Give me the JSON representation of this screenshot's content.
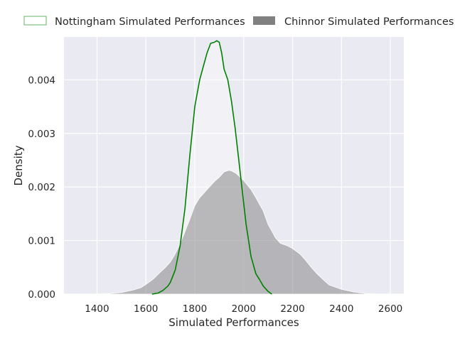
{
  "chart_data": {
    "type": "area",
    "title": "",
    "xlabel": "Simulated Performances",
    "ylabel": "Density",
    "xlim": [
      1265,
      2655
    ],
    "ylim": [
      0,
      0.0048
    ],
    "x_ticks": [
      "1400",
      "1600",
      "1800",
      "2000",
      "2200",
      "2400",
      "2600"
    ],
    "x_tick_values": [
      1400,
      1600,
      1800,
      2000,
      2200,
      2400,
      2600
    ],
    "y_ticks": [
      "0.000",
      "0.001",
      "0.002",
      "0.003",
      "0.004"
    ],
    "y_tick_values": [
      0,
      0.001,
      0.002,
      0.003,
      0.004
    ],
    "grid": true,
    "legend_position": "top",
    "background_color": "#eaeaf2",
    "series": [
      {
        "name": "Nottingham Simulated Performances",
        "style": "line-with-light-fill",
        "line_color": "#008000",
        "fill_color": "#ffffff",
        "x": [
          1625,
          1650,
          1670,
          1690,
          1700,
          1720,
          1740,
          1760,
          1780,
          1800,
          1820,
          1835,
          1850,
          1865,
          1880,
          1890,
          1900,
          1910,
          1920,
          1935,
          1950,
          1965,
          1980,
          1995,
          2010,
          2030,
          2050,
          2065,
          2080,
          2100,
          2115
        ],
        "y": [
          0.0,
          2e-05,
          7e-05,
          0.00015,
          0.00022,
          0.00045,
          0.0009,
          0.0016,
          0.0026,
          0.0035,
          0.004,
          0.00425,
          0.0045,
          0.00468,
          0.0047,
          0.00473,
          0.0047,
          0.0045,
          0.0042,
          0.004,
          0.0036,
          0.0031,
          0.0025,
          0.0019,
          0.0013,
          0.0007,
          0.00038,
          0.00027,
          0.00015,
          5e-05,
          0.0
        ]
      },
      {
        "name": "Chinnor Simulated Performances",
        "style": "filled-area",
        "line_color": "#ffffff",
        "fill_color": "#808080",
        "x": [
          1325,
          1400,
          1450,
          1500,
          1550,
          1580,
          1600,
          1630,
          1650,
          1680,
          1700,
          1720,
          1750,
          1780,
          1800,
          1820,
          1850,
          1880,
          1900,
          1920,
          1940,
          1950,
          1970,
          2000,
          2030,
          2050,
          2080,
          2100,
          2130,
          2150,
          2180,
          2200,
          2230,
          2250,
          2280,
          2300,
          2330,
          2350,
          2400,
          2450,
          2500,
          2550,
          2600
        ],
        "y": [
          0.0,
          3e-06,
          1e-05,
          3e-05,
          8e-05,
          0.00012,
          0.00018,
          0.00028,
          0.00037,
          0.0005,
          0.0006,
          0.00075,
          0.00105,
          0.0014,
          0.00165,
          0.0018,
          0.00195,
          0.0021,
          0.00218,
          0.00228,
          0.00231,
          0.0023,
          0.00225,
          0.00212,
          0.00195,
          0.0018,
          0.00155,
          0.0013,
          0.00105,
          0.00095,
          0.0009,
          0.00085,
          0.00075,
          0.00065,
          0.00048,
          0.00038,
          0.00025,
          0.00017,
          9e-05,
          4e-05,
          1e-05,
          2e-06,
          0.0
        ]
      }
    ]
  }
}
